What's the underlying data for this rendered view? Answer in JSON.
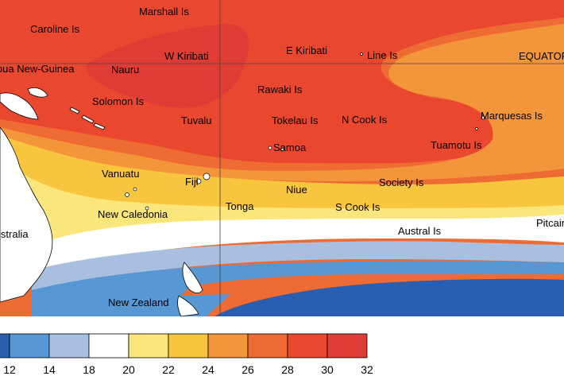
{
  "map": {
    "places": {
      "marshall": "Marshall Is",
      "caroline": "Caroline Is",
      "png": "Papua New-Guinea",
      "nauru": "Nauru",
      "w_kiribati": "W Kiribati",
      "e_kiribati": "E Kiribati",
      "line": "Line Is",
      "equator": "EQUATOR",
      "solomon": "Solomon Is",
      "rawaki": "Rawaki Is",
      "tuvalu": "Tuvalu",
      "tokelau": "Tokelau Is",
      "n_cook": "N Cook Is",
      "marquesas": "Marquesas Is",
      "samoa": "Samoa",
      "tuamotu": "Tuamotu Is",
      "vanuatu": "Vanuatu",
      "fiji": "Fiji",
      "niue": "Niue",
      "society": "Society Is",
      "new_caledonia": "New Caledonia",
      "tonga": "Tonga",
      "s_cook": "S Cook Is",
      "australia": "Australia",
      "austral": "Austral Is",
      "pitcairn": "Pitcairn",
      "new_zealand": "New Zealand"
    },
    "legend": {
      "ticks": [
        "12",
        "14",
        "18",
        "20",
        "22",
        "24",
        "26",
        "28",
        "30",
        "32"
      ],
      "colors": [
        "#2a5eb0",
        "#5797d4",
        "#a9bfe0",
        "#ffffff",
        "#fae67a",
        "#f8c63e",
        "#f3963b",
        "#ee6c33",
        "#e9482f",
        "#e03c36"
      ]
    },
    "colors": {
      "ocean_band_cold_deep": "#2a5eb0",
      "ocean_band_cold": "#5797d4",
      "ocean_band_cool": "#a9bfe0",
      "ocean_band_neutral": "#ffffff",
      "ocean_band_warm_light": "#fae67a",
      "ocean_band_warm": "#f8c63e",
      "ocean_band_orange": "#f3963b",
      "ocean_band_red_orange": "#ee6c33",
      "ocean_band_red": "#e9482f",
      "ocean_band_hot": "#e03c36"
    }
  }
}
